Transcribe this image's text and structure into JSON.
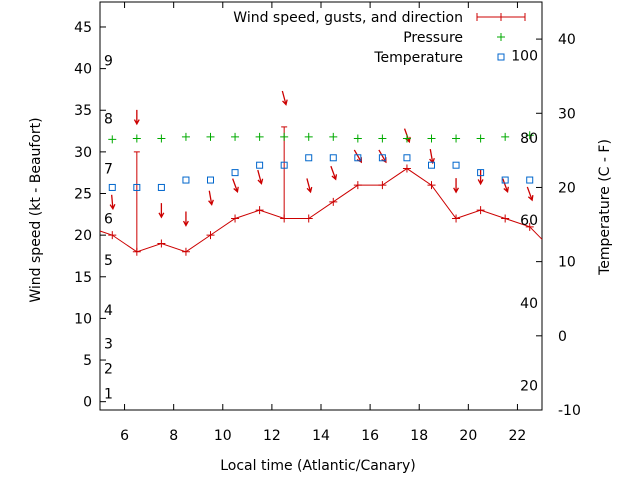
{
  "chart_data": {
    "type": "line",
    "xlabel": "Local time (Atlantic/Canary)",
    "ylabel": "Wind speed (kt - Beaufort)",
    "y2label": "Temperature (C - F)",
    "xlim": [
      5,
      23
    ],
    "ylim": [
      -1,
      48
    ],
    "y2lim": [
      -10,
      45
    ],
    "x_ticks": [
      6,
      8,
      10,
      12,
      14,
      16,
      18,
      20,
      22
    ],
    "y_ticks": [
      0,
      5,
      10,
      15,
      20,
      25,
      30,
      35,
      40,
      45
    ],
    "y2_ticks": [
      -10,
      0,
      10,
      20,
      30,
      40
    ],
    "beaufort_labels": [
      {
        "label": "1",
        "kt": 1
      },
      {
        "label": "2",
        "kt": 4
      },
      {
        "label": "3",
        "kt": 7
      },
      {
        "label": "4",
        "kt": 11
      },
      {
        "label": "5",
        "kt": 17
      },
      {
        "label": "6",
        "kt": 22
      },
      {
        "label": "7",
        "kt": 28
      },
      {
        "label": "8",
        "kt": 34
      },
      {
        "label": "9",
        "kt": 41
      }
    ],
    "fahrenheit_labels": [
      {
        "label": "20",
        "c": -6.7
      },
      {
        "label": "40",
        "c": 4.4
      },
      {
        "label": "60",
        "c": 15.6
      },
      {
        "label": "80",
        "c": 26.7
      },
      {
        "label": "100",
        "c": 37.8
      }
    ],
    "legend": {
      "wind": "Wind speed, gusts, and direction",
      "pressure": "Pressure",
      "temperature": "Temperature"
    },
    "series": [
      {
        "name": "Wind speed",
        "x": [
          5.5,
          6.5,
          7.5,
          8.5,
          9.5,
          10.5,
          11.5,
          12.5,
          13.5,
          14.5,
          15.5,
          16.5,
          17.5,
          18.5,
          19.5,
          20.5,
          21.5,
          22.5
        ],
        "values": [
          20,
          18,
          19,
          18,
          20,
          22,
          23,
          22,
          22,
          24,
          26,
          26,
          28,
          26,
          22,
          23,
          22,
          21
        ],
        "line_x_start": 5.0,
        "line_y_start": 20.5,
        "line_x_end": 23.0,
        "line_y_end": 19.5
      },
      {
        "name": "Gusts",
        "x": [
          6.5,
          12.5
        ],
        "values": [
          30,
          33
        ]
      },
      {
        "name": "Wind direction (deg)",
        "x": [
          5.5,
          6.5,
          7.5,
          8.5,
          9.5,
          10.5,
          11.5,
          12.5,
          13.5,
          14.5,
          15.5,
          16.5,
          17.5,
          18.5,
          19.5,
          20.5,
          21.5,
          22.5
        ],
        "values": [
          355,
          360,
          360,
          360,
          350,
          340,
          345,
          345,
          345,
          340,
          330,
          330,
          340,
          350,
          360,
          360,
          340,
          340
        ],
        "y": [
          24,
          34.2,
          23,
          22,
          24.5,
          26,
          27,
          36.5,
          26,
          27.5,
          29.5,
          29.5,
          32,
          29.5,
          26,
          27,
          26,
          25
        ]
      },
      {
        "name": "Pressure",
        "x": [
          5.5,
          6.5,
          7.5,
          8.5,
          9.5,
          10.5,
          11.5,
          12.5,
          13.5,
          14.5,
          15.5,
          16.5,
          17.5,
          18.5,
          19.5,
          20.5,
          21.5,
          22.5
        ],
        "values": [
          31.5,
          31.6,
          31.6,
          31.8,
          31.8,
          31.8,
          31.8,
          31.8,
          31.8,
          31.8,
          31.6,
          31.6,
          31.6,
          31.6,
          31.6,
          31.6,
          31.8,
          32.0
        ]
      },
      {
        "name": "Temperature (C)",
        "x": [
          5.5,
          6.5,
          7.5,
          8.5,
          9.5,
          10.5,
          11.5,
          12.5,
          13.5,
          14.5,
          15.5,
          16.5,
          17.5,
          18.5,
          19.5,
          20.5,
          21.5,
          22.5
        ],
        "values": [
          20,
          20,
          20,
          21,
          21,
          22,
          23,
          23,
          24,
          24,
          24,
          24,
          24,
          23,
          23,
          22,
          21,
          21
        ]
      }
    ],
    "colors": {
      "wind": "#cc0000",
      "pressure": "#00aa00",
      "temperature": "#0066cc",
      "axes": "#000000"
    }
  }
}
